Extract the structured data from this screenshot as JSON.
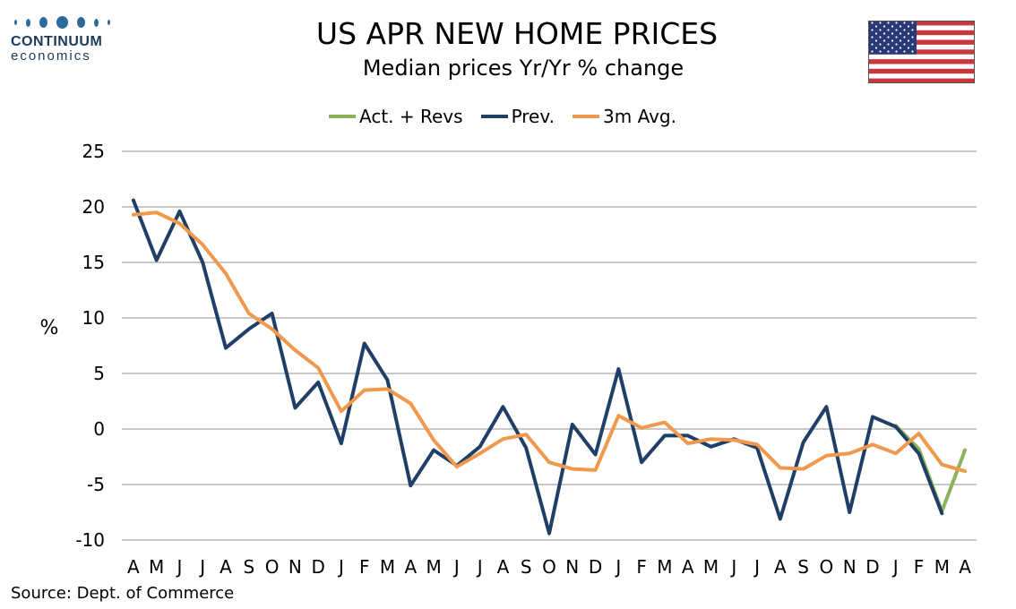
{
  "logo": {
    "word": "CONTINUUM",
    "sub": "economics"
  },
  "title": "US APR NEW HOME PRICES",
  "subtitle": "Median prices Yr/Yr % change",
  "source": "Source: Dept. of Commerce",
  "colors": {
    "act": "#8db35a",
    "prev": "#1f3f66",
    "avg": "#f0994d",
    "grid": "#c8c8c8"
  },
  "chart_data": {
    "type": "line",
    "title": "US APR NEW HOME PRICES",
    "subtitle": "Median prices Yr/Yr % change",
    "ylabel": "%",
    "ylim": [
      -10,
      25
    ],
    "yticks": [
      25,
      20,
      15,
      10,
      5,
      0,
      -5,
      -10
    ],
    "grid": true,
    "legend_position": "top-center",
    "categories": [
      "A",
      "M",
      "J",
      "J",
      "A",
      "S",
      "O",
      "N",
      "D",
      "J",
      "F",
      "M",
      "A",
      "M",
      "J",
      "J",
      "A",
      "S",
      "O",
      "N",
      "D",
      "J",
      "F",
      "M",
      "A",
      "M",
      "J",
      "J",
      "A",
      "S",
      "O",
      "N",
      "D",
      "J",
      "F",
      "M",
      "A"
    ],
    "series": [
      {
        "name": "Act. + Revs",
        "color": "#8db35a",
        "values": [
          null,
          null,
          null,
          null,
          null,
          null,
          null,
          null,
          null,
          null,
          null,
          null,
          null,
          null,
          null,
          null,
          null,
          null,
          null,
          null,
          null,
          null,
          null,
          null,
          null,
          null,
          null,
          null,
          null,
          null,
          null,
          null,
          null,
          0.3,
          -1.8,
          -7.4,
          -1.9
        ]
      },
      {
        "name": "Prev.",
        "color": "#1f3f66",
        "values": [
          20.6,
          15.2,
          19.6,
          15.0,
          7.3,
          9.0,
          10.4,
          1.9,
          4.2,
          -1.3,
          7.7,
          4.4,
          -5.1,
          -1.9,
          -3.3,
          -1.6,
          2.0,
          -1.7,
          -9.4,
          0.4,
          -2.3,
          5.4,
          -3.0,
          -0.6,
          -0.6,
          -1.6,
          -0.9,
          -1.7,
          -8.1,
          -1.2,
          2.0,
          -7.5,
          1.1,
          0.2,
          -2.2,
          -7.6,
          null
        ]
      },
      {
        "name": "3m Avg.",
        "color": "#f0994d",
        "values": [
          19.3,
          19.5,
          18.5,
          16.6,
          14.0,
          10.4,
          9.0,
          7.1,
          5.5,
          1.6,
          3.5,
          3.6,
          2.3,
          -1.0,
          -3.4,
          -2.2,
          -0.9,
          -0.5,
          -3.0,
          -3.6,
          -3.7,
          1.2,
          0.1,
          0.6,
          -1.3,
          -0.9,
          -1.0,
          -1.4,
          -3.5,
          -3.6,
          -2.4,
          -2.2,
          -1.4,
          -2.2,
          -0.4,
          -3.2,
          -3.8
        ]
      }
    ]
  }
}
